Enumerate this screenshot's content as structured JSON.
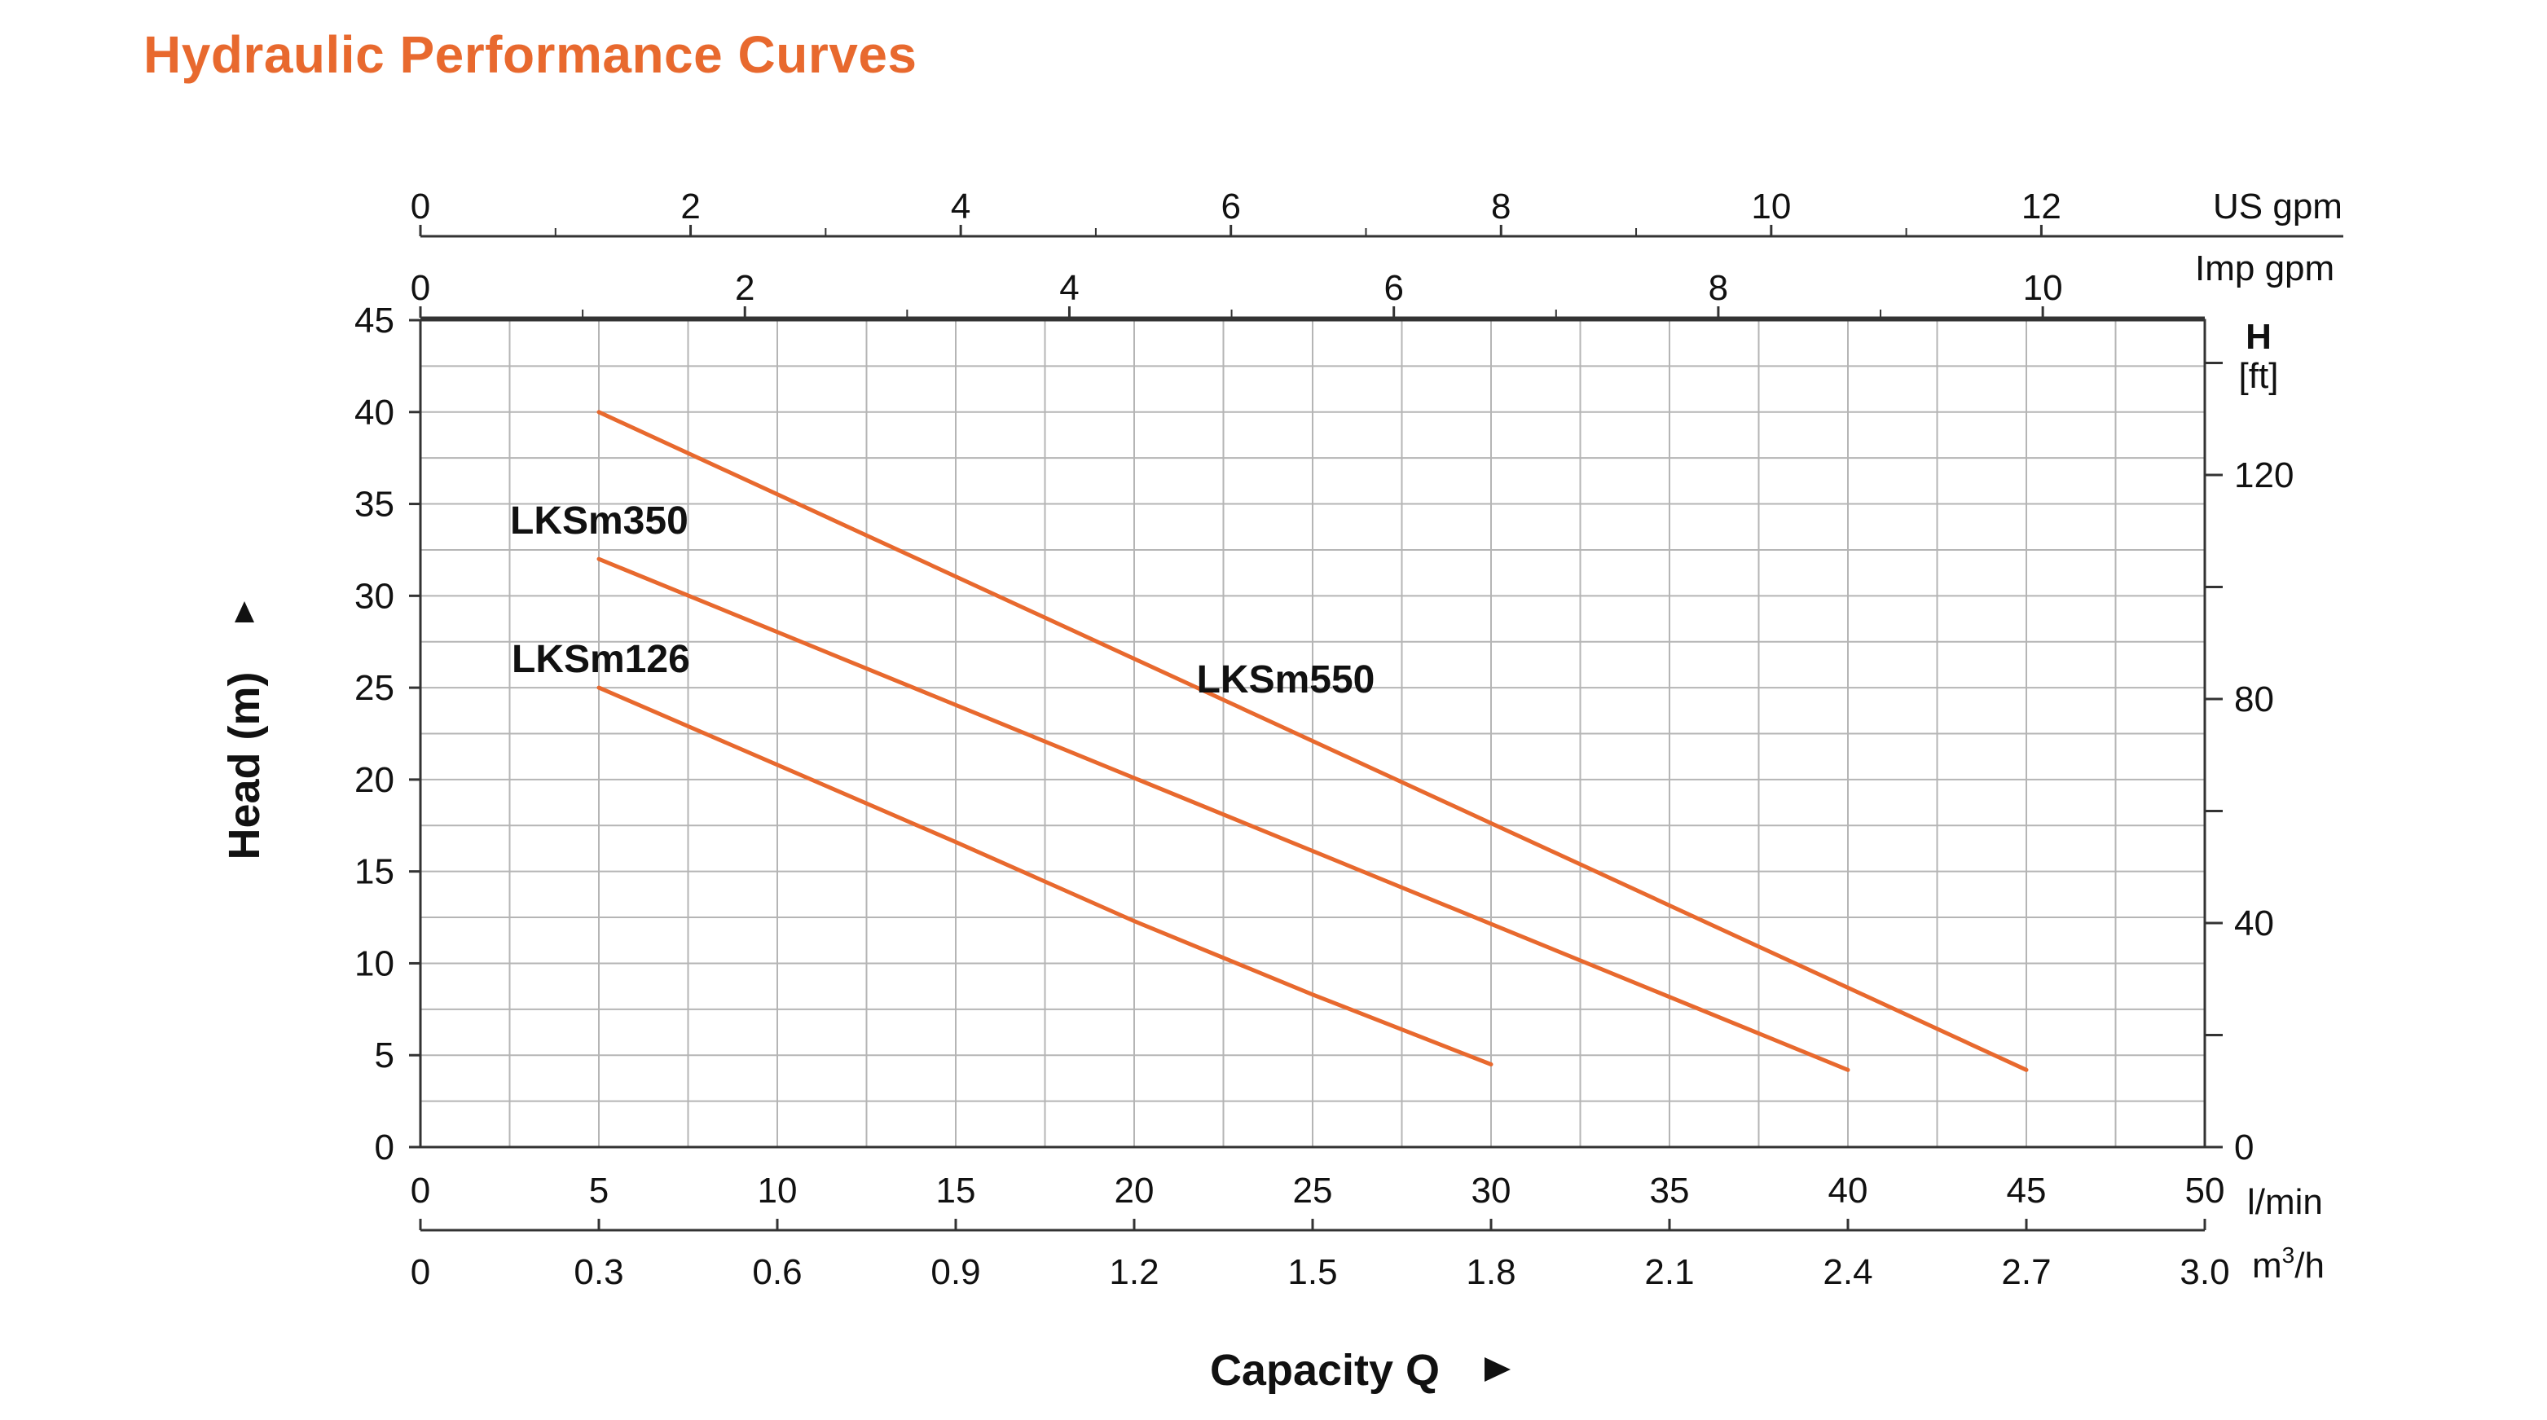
{
  "title": "Hydraulic Performance Curves",
  "colors": {
    "title": "#e8692e",
    "curve": "#e8692e",
    "grid": "#b5b5b5",
    "axis": "#333333",
    "text": "#111111"
  },
  "chart_data": {
    "type": "line",
    "title": "",
    "xlabel": "Capacity Q",
    "ylabel": "Head (m)",
    "xlim": [
      0,
      50
    ],
    "ylim": [
      0,
      45
    ],
    "grid": true,
    "x_ticks": [
      0,
      5,
      10,
      15,
      20,
      25,
      30,
      35,
      40,
      45,
      50
    ],
    "x_unit": "l/min",
    "y_ticks": [
      0,
      5,
      10,
      15,
      20,
      25,
      30,
      35,
      40,
      45
    ],
    "x_secondary_axes": [
      {
        "unit": "US gpm",
        "position": "top",
        "labels": [
          "0",
          "2",
          "4",
          "6",
          "8",
          "10",
          "12"
        ],
        "values": [
          0,
          2,
          4,
          6,
          8,
          10,
          12
        ],
        "minor_values": [
          1,
          3,
          5,
          7,
          9,
          11
        ],
        "scale_to_x": 3.785
      },
      {
        "unit": "Imp gpm",
        "position": "top",
        "labels": [
          "0",
          "2",
          "4",
          "6",
          "8",
          "10"
        ],
        "values": [
          0,
          2,
          4,
          6,
          8,
          10
        ],
        "minor_values": [
          1,
          3,
          5,
          7,
          9
        ],
        "scale_to_x": 4.546
      },
      {
        "unit": "m³/h",
        "unit_base": "m",
        "unit_sup": "3",
        "unit_rest": "/h",
        "position": "bottom",
        "labels": [
          "0",
          "0.3",
          "0.6",
          "0.9",
          "1.2",
          "1.5",
          "1.8",
          "2.1",
          "2.4",
          "2.7",
          "3.0"
        ],
        "values": [
          0,
          0.3,
          0.6,
          0.9,
          1.2,
          1.5,
          1.8,
          2.1,
          2.4,
          2.7,
          3.0
        ],
        "scale_to_x": 16.6667
      }
    ],
    "y_secondary_axis": {
      "unit_line1": "H",
      "unit_line2": "[ft]",
      "position": "right",
      "labels": [
        "0",
        "40",
        "80",
        "120"
      ],
      "values": [
        0,
        40,
        80,
        120
      ],
      "minor_values": [
        20,
        60,
        100,
        140
      ],
      "scale_to_y": 0.3048
    },
    "series": [
      {
        "name": "LKSm550",
        "points": [
          [
            5,
            40
          ],
          [
            45,
            4.2
          ]
        ]
      },
      {
        "name": "LKSm350",
        "points": [
          [
            5,
            32
          ],
          [
            40,
            4.2
          ]
        ]
      },
      {
        "name": "LKSm126",
        "points": [
          [
            5,
            25
          ],
          [
            10,
            20.8
          ],
          [
            15,
            16.6
          ],
          [
            20,
            12.3
          ],
          [
            25,
            8.3
          ],
          [
            30,
            4.5
          ]
        ]
      }
    ]
  }
}
